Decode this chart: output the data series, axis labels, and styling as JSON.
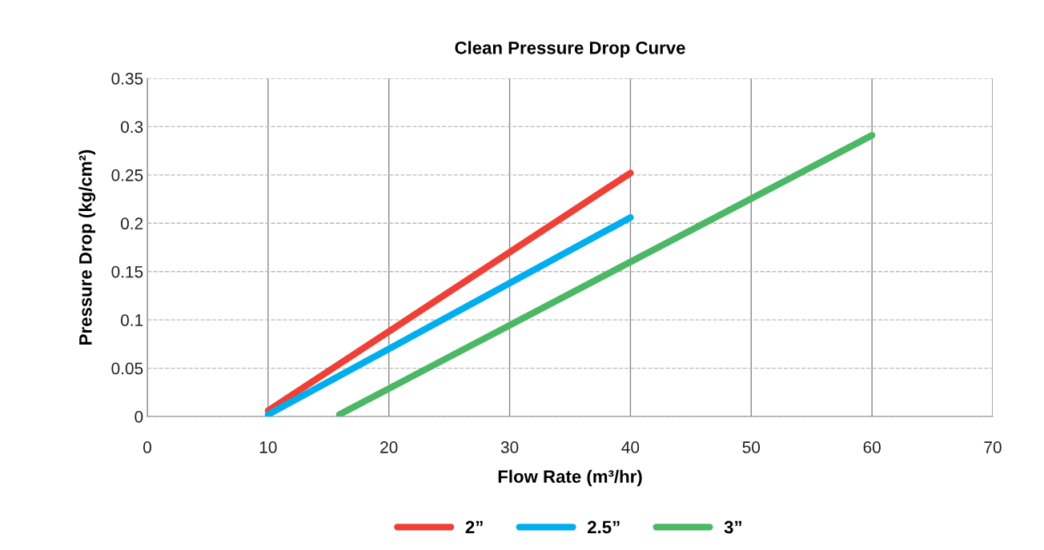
{
  "chart_data": {
    "type": "line",
    "title": "Clean Pressure Drop Curve",
    "xlabel": "Flow Rate (m³/hr)",
    "ylabel": "Pressure Drop (kg/cm²)",
    "xlim": [
      0,
      70
    ],
    "xticks": [
      0,
      10,
      20,
      30,
      40,
      50,
      60,
      70
    ],
    "ylim": [
      0,
      0.35
    ],
    "yticks": [
      {
        "value": 0,
        "label": "0"
      },
      {
        "value": 0.05,
        "label": "0.05"
      },
      {
        "value": 0.1,
        "label": "0.1"
      },
      {
        "value": 0.15,
        "label": "0.15"
      },
      {
        "value": 0.2,
        "label": "0.2"
      },
      {
        "value": 0.25,
        "label": "0.25"
      },
      {
        "value": 0.3,
        "label": "0.3"
      },
      {
        "value": 0.35,
        "label": "0.35"
      }
    ],
    "grid": true,
    "legend": "bottom",
    "marker": "none",
    "line_style": "solid",
    "series": [
      {
        "name": "2”",
        "color": "#ee4036",
        "x": [
          10,
          40
        ],
        "values": [
          0.006,
          0.252
        ]
      },
      {
        "name": "2.5”",
        "color": "#00aeef",
        "x": [
          10,
          40
        ],
        "values": [
          0.002,
          0.206
        ]
      },
      {
        "name": "3”",
        "color": "#4cb866",
        "x": [
          15.9,
          60
        ],
        "values": [
          0.002,
          0.291
        ]
      }
    ]
  }
}
